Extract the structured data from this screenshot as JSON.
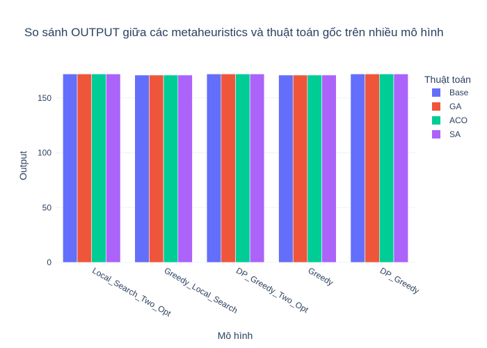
{
  "chart_data": {
    "type": "bar",
    "title": "So sánh OUTPUT giữa các metaheuristics và thuật toán gốc trên nhiều mô hình",
    "xlabel": "Mô hình",
    "ylabel": "Output",
    "categories": [
      "Local_Search_Two_Opt",
      "Greedy_Local_Search",
      "DP_Greedy_Two_Opt",
      "Greedy",
      "DP_Greedy"
    ],
    "series": [
      {
        "name": "Base",
        "color": "#636efa",
        "values": [
          172,
          171,
          172,
          171,
          172
        ]
      },
      {
        "name": "GA",
        "color": "#ef553b",
        "values": [
          172,
          171,
          172,
          171,
          172
        ]
      },
      {
        "name": "ACO",
        "color": "#00cc96",
        "values": [
          172,
          171,
          172,
          171,
          172
        ]
      },
      {
        "name": "SA",
        "color": "#ab63fa",
        "values": [
          172,
          171,
          172,
          171,
          172
        ]
      }
    ],
    "ylim": [
      0,
      176
    ],
    "yticks": [
      0,
      50,
      100,
      150
    ],
    "grid": true,
    "legend": {
      "title": "Thuật toán",
      "position": "right"
    }
  }
}
